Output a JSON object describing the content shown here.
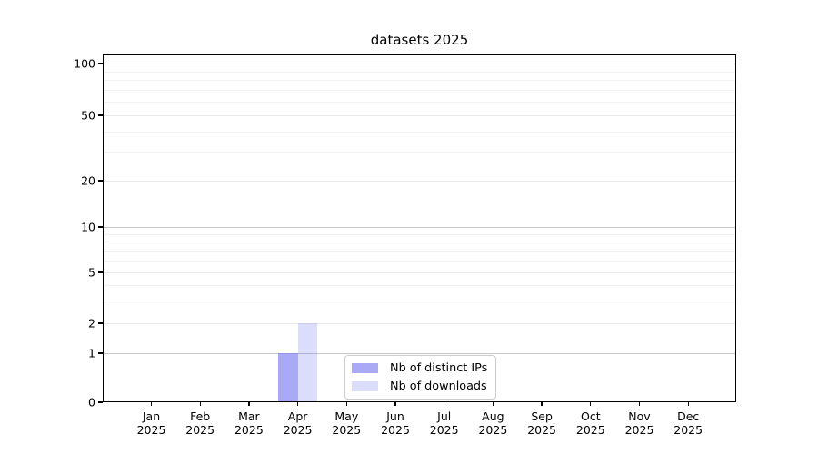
{
  "figure": {
    "background": "#ffffff",
    "axis_color": "#000000",
    "grid_color_decade": "#c6c6c6",
    "grid_color_major": "#e8e8e8",
    "grid_color_minor": "#f1f1f1"
  },
  "chart_data": {
    "type": "bar",
    "title": "datasets 2025",
    "xlabel": "",
    "ylabel": "",
    "yscale": "symlog",
    "ylim": [
      0,
      100
    ],
    "grid": true,
    "legend_position": "lower center (inside axes)",
    "categories": [
      {
        "month": "Jan",
        "year": "2025"
      },
      {
        "month": "Feb",
        "year": "2025"
      },
      {
        "month": "Mar",
        "year": "2025"
      },
      {
        "month": "Apr",
        "year": "2025"
      },
      {
        "month": "May",
        "year": "2025"
      },
      {
        "month": "Jun",
        "year": "2025"
      },
      {
        "month": "Jul",
        "year": "2025"
      },
      {
        "month": "Aug",
        "year": "2025"
      },
      {
        "month": "Sep",
        "year": "2025"
      },
      {
        "month": "Oct",
        "year": "2025"
      },
      {
        "month": "Nov",
        "year": "2025"
      },
      {
        "month": "Dec",
        "year": "2025"
      }
    ],
    "series": [
      {
        "name": "Nb of distinct IPs",
        "color": "rgba(120,120,240,0.64)",
        "values": [
          0,
          0,
          0,
          1,
          0,
          0,
          0,
          0,
          0,
          0,
          0,
          0
        ]
      },
      {
        "name": "Nb of downloads",
        "color": "rgba(120,120,240,0.26)",
        "values": [
          0,
          0,
          0,
          2,
          0,
          0,
          0,
          0,
          0,
          0,
          0,
          0
        ]
      }
    ],
    "y_ticks": [
      100,
      50,
      20,
      10,
      5,
      2,
      1,
      0
    ],
    "y_decade_gridlines": [
      1,
      10,
      100
    ],
    "y_minor_gridlines": [
      3,
      4,
      6,
      7,
      8,
      9,
      30,
      40,
      60,
      70,
      80,
      90
    ]
  }
}
